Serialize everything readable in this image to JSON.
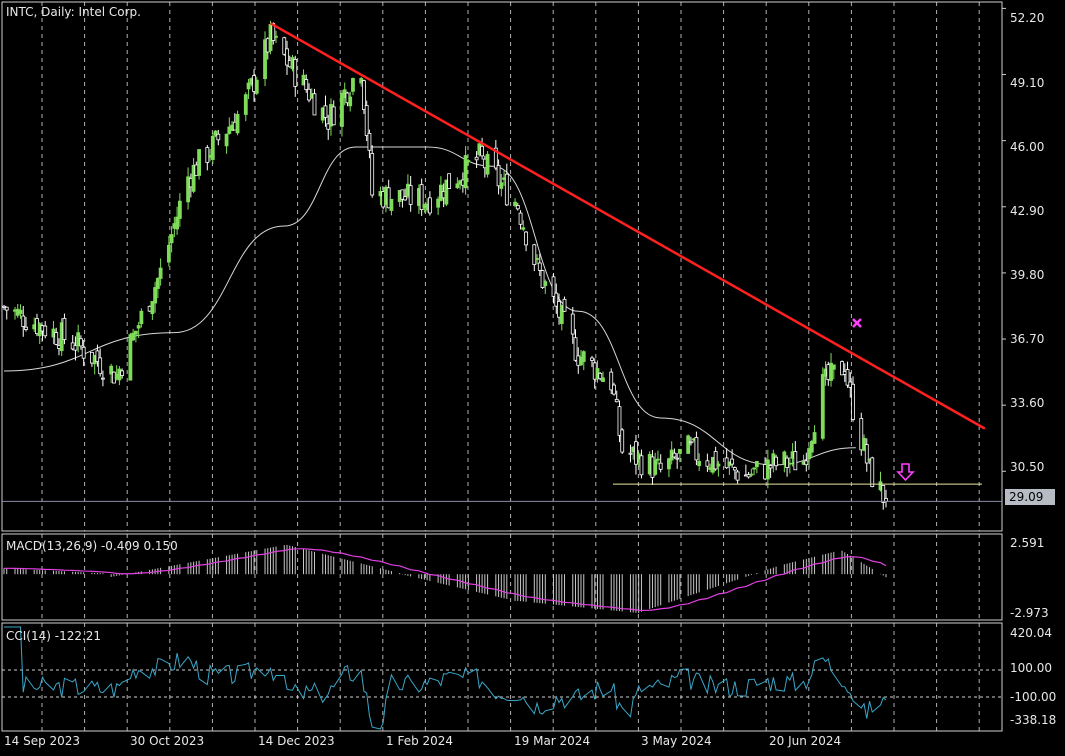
{
  "title": "INTC, Daily:  Intel Corp.",
  "current_price_label": "29.09",
  "price_axis_labels": [
    "52.20",
    "49.10",
    "46.00",
    "42.90",
    "39.80",
    "36.70",
    "33.60",
    "30.50"
  ],
  "x_axis_labels": [
    "14 Sep 2023",
    "30 Oct 2023",
    "14 Dec 2023",
    "1 Feb 2024",
    "19 Mar 2024",
    "3 May 2024",
    "20 Jun 2024"
  ],
  "macd": {
    "label": "MACD(13,26,9) -0.409 0.150",
    "axis_labels": [
      "2.591",
      "-2.973"
    ],
    "range": [
      -2.973,
      2.591
    ]
  },
  "cci": {
    "label": "CCI(14) -122.21",
    "axis_labels": [
      "420.04",
      "100.00",
      "-100.00",
      "-338.18"
    ],
    "range": [
      -338.18,
      420.04
    ],
    "levels": [
      100,
      -100
    ]
  },
  "colors": {
    "background": "#000000",
    "bull_candle": "#7fdc5a",
    "bear_candle": "#ffffff",
    "moving_average": "#d8d8d8",
    "trendline": "#ff2020",
    "support_line": "#e8e8a0",
    "macd_signal": "#e040e0",
    "macd_hist": "#c8c8c8",
    "cci_line": "#3aa6c8",
    "marker": "#ff40ff",
    "grid": "#d0d0d0",
    "price_line": "#8c8ca8"
  },
  "chart_data": {
    "type": "candlestick",
    "symbol": "INTC",
    "timeframe": "Daily",
    "ylim": [
      27.7,
      52.5
    ],
    "last_price": 29.09,
    "key_closes": [
      {
        "date": "2023-09-14",
        "close": 38.2
      },
      {
        "date": "2023-10-10",
        "close": 36.5
      },
      {
        "date": "2023-10-25",
        "close": 35.0
      },
      {
        "date": "2023-11-10",
        "close": 39.8
      },
      {
        "date": "2023-11-20",
        "close": 44.3
      },
      {
        "date": "2023-12-10",
        "close": 47.5
      },
      {
        "date": "2023-12-20",
        "close": 50.8
      },
      {
        "date": "2024-01-10",
        "close": 47.0
      },
      {
        "date": "2024-01-22",
        "close": 49.5
      },
      {
        "date": "2024-01-26",
        "close": 43.5
      },
      {
        "date": "2024-02-15",
        "close": 43.2
      },
      {
        "date": "2024-03-05",
        "close": 45.2
      },
      {
        "date": "2024-03-19",
        "close": 43.0
      },
      {
        "date": "2024-03-26",
        "close": 40.0
      },
      {
        "date": "2024-04-10",
        "close": 36.0
      },
      {
        "date": "2024-04-22",
        "close": 34.7
      },
      {
        "date": "2024-04-26",
        "close": 31.5
      },
      {
        "date": "2024-05-10",
        "close": 30.5
      },
      {
        "date": "2024-05-20",
        "close": 31.5
      },
      {
        "date": "2024-06-10",
        "close": 30.3
      },
      {
        "date": "2024-06-20",
        "close": 30.8
      },
      {
        "date": "2024-07-01",
        "close": 31.0
      },
      {
        "date": "2024-07-08",
        "close": 34.5
      },
      {
        "date": "2024-07-16",
        "close": 35.5
      },
      {
        "date": "2024-07-18",
        "close": 34.0
      },
      {
        "date": "2024-07-25",
        "close": 30.5
      },
      {
        "date": "2024-07-31",
        "close": 29.09
      }
    ],
    "trendline": [
      {
        "date": "2023-12-20",
        "price": 51.5
      },
      {
        "date": "2024-09-05",
        "price": 32.5
      }
    ],
    "support_level": 29.9,
    "moving_average": {
      "description": "moving average",
      "approx_values": [
        {
          "date": "2023-09-14",
          "value": 35.2
        },
        {
          "date": "2023-11-15",
          "value": 37.0
        },
        {
          "date": "2023-12-25",
          "value": 42.0
        },
        {
          "date": "2024-01-20",
          "value": 45.7
        },
        {
          "date": "2024-02-15",
          "value": 45.7
        },
        {
          "date": "2024-03-10",
          "value": 44.8
        },
        {
          "date": "2024-04-10",
          "value": 38.0
        },
        {
          "date": "2024-05-10",
          "value": 33.0
        },
        {
          "date": "2024-06-20",
          "value": 30.8
        },
        {
          "date": "2024-07-20",
          "value": 31.6
        }
      ]
    },
    "x_tick_labels": [
      "14 Sep 2023",
      "30 Oct 2023",
      "14 Dec 2023",
      "1 Feb 2024",
      "19 Mar 2024",
      "3 May 2024",
      "20 Jun 2024"
    ],
    "y_tick_labels": [
      "52.20",
      "49.10",
      "46.00",
      "42.90",
      "39.80",
      "36.70",
      "33.60",
      "30.50"
    ]
  }
}
